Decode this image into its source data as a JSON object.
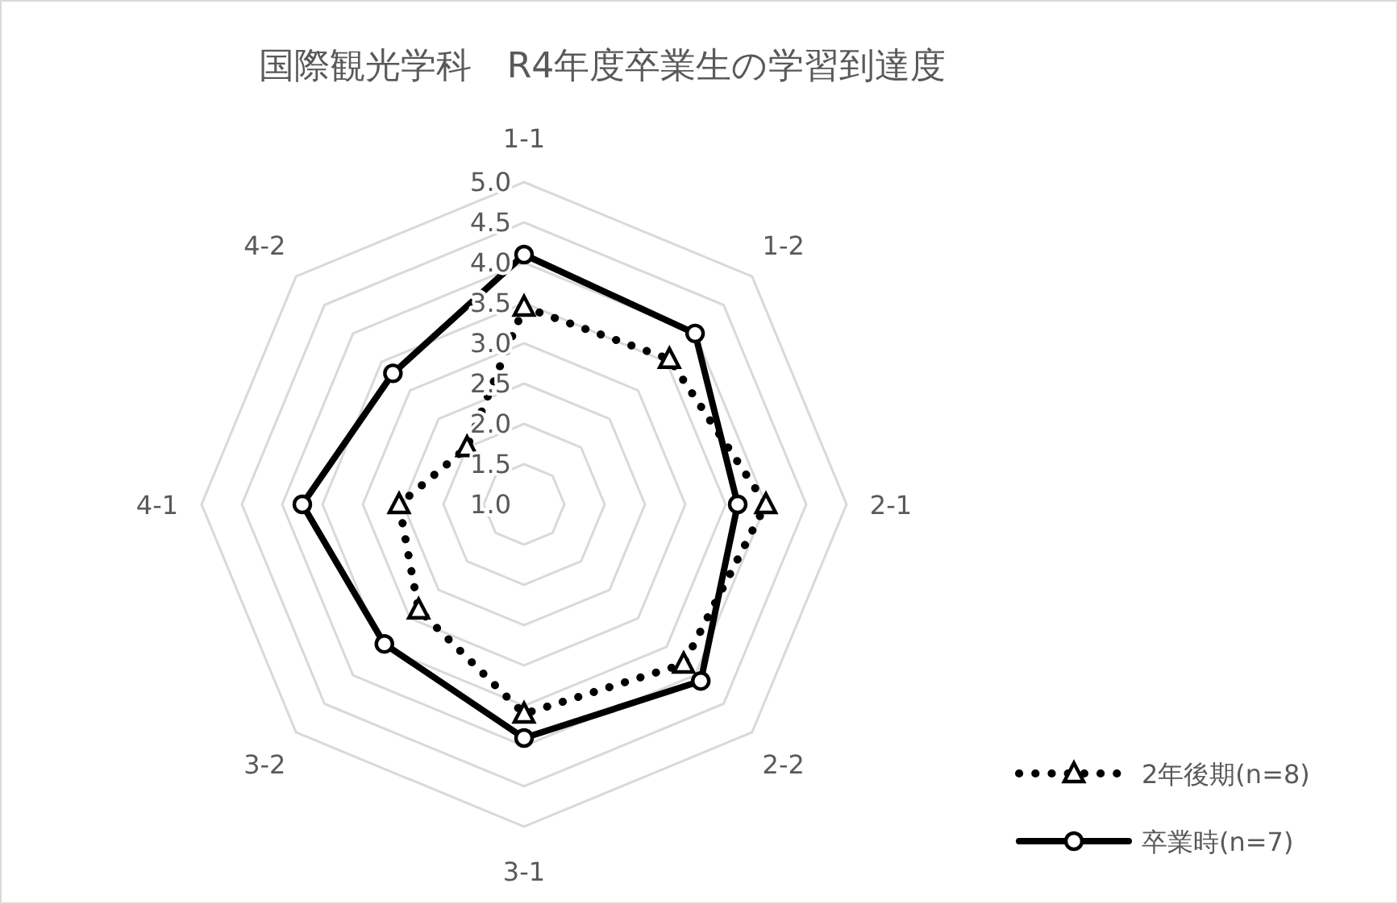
{
  "chart_data": {
    "type": "radar",
    "title": "国際観光学科　R4年度卒業生の学習到達度",
    "categories": [
      "1-1",
      "1-2",
      "2-1",
      "2-2",
      "3-1",
      "3-2",
      "4-1",
      "4-2"
    ],
    "series": [
      {
        "name": "2年後期(n=8)",
        "color": "#000000",
        "marker": "triangle",
        "line_style": "dotted",
        "values": [
          3.45,
          3.55,
          4.0,
          3.8,
          3.6,
          2.85,
          2.55,
          2.0
        ]
      },
      {
        "name": "卒業時(n=7)",
        "color": "#000000",
        "marker": "circle",
        "line_style": "solid",
        "values": [
          4.1,
          4.0,
          3.65,
          4.1,
          3.9,
          3.45,
          3.75,
          3.3
        ]
      }
    ],
    "ylim": [
      1,
      5
    ],
    "yticks": [
      {
        "value": 1,
        "label": "1.0"
      },
      {
        "value": 1.5,
        "label": "1.5"
      },
      {
        "value": 2,
        "label": "2.0"
      },
      {
        "value": 2.5,
        "label": "2.5"
      },
      {
        "value": 3,
        "label": "3.0"
      },
      {
        "value": 3.5,
        "label": "3.5"
      },
      {
        "value": 4,
        "label": "4.0"
      },
      {
        "value": 4.5,
        "label": "4.5"
      },
      {
        "value": 5,
        "label": "5.0"
      }
    ],
    "grid": true,
    "legend": "bottom right"
  }
}
